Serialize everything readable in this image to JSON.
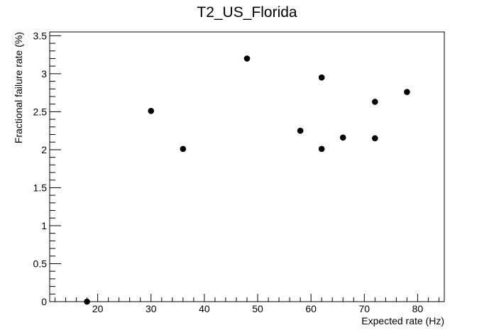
{
  "chart_data": {
    "type": "scatter",
    "title": "T2_US_Florida",
    "xlabel": "Expected rate (Hz)",
    "ylabel": "Fractional failure rate (%)",
    "xlim": [
      11,
      85
    ],
    "ylim": [
      0,
      3.55
    ],
    "x_ticks": [
      20,
      30,
      40,
      50,
      60,
      70,
      80
    ],
    "x_tick_labels": [
      "20",
      "30",
      "40",
      "50",
      "60",
      "70",
      "80"
    ],
    "y_ticks": [
      0,
      0.5,
      1,
      1.5,
      2,
      2.5,
      3,
      3.5
    ],
    "y_tick_labels": [
      "0",
      "0.5",
      "1",
      "1.5",
      "2",
      "2.5",
      "3",
      "3.5"
    ],
    "grid": false,
    "marker_color": "#000000",
    "points": [
      {
        "x": 18,
        "y": 0.0
      },
      {
        "x": 30,
        "y": 2.51
      },
      {
        "x": 36,
        "y": 2.01
      },
      {
        "x": 48,
        "y": 3.2
      },
      {
        "x": 58,
        "y": 2.25
      },
      {
        "x": 62,
        "y": 2.95
      },
      {
        "x": 62,
        "y": 2.01
      },
      {
        "x": 66,
        "y": 2.16
      },
      {
        "x": 72,
        "y": 2.63
      },
      {
        "x": 72,
        "y": 2.15
      },
      {
        "x": 78,
        "y": 2.76
      }
    ]
  }
}
